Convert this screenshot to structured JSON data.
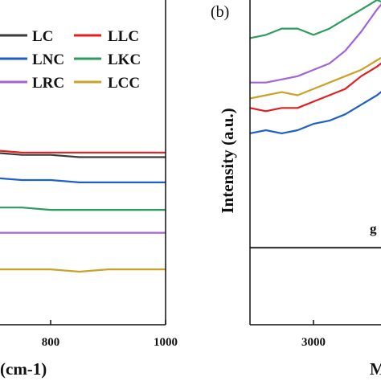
{
  "chart_data": [
    {
      "panel": "a",
      "type": "line",
      "xlabel": "(cm-1)",
      "ylabel": "",
      "xlim": [
        600,
        1000
      ],
      "x_ticks": [
        {
          "value": 800,
          "label": "800"
        },
        {
          "value": 1000,
          "label": "1000"
        }
      ],
      "grid": false,
      "legend_position": "top",
      "x": [
        600,
        650,
        700,
        750,
        800,
        850,
        900,
        950,
        1000
      ],
      "series": [
        {
          "name": "LC",
          "color": "#3a3a3a",
          "values": [
            0.78,
            0.74,
            0.72,
            0.71,
            0.71,
            0.7,
            0.7,
            0.7,
            0.7
          ]
        },
        {
          "name": "LLC",
          "color": "#e02020",
          "values": [
            0.74,
            0.73,
            0.73,
            0.72,
            0.72,
            0.72,
            0.72,
            0.72,
            0.72
          ]
        },
        {
          "name": "LNC",
          "color": "#1f5fc8",
          "values": [
            0.64,
            0.62,
            0.61,
            0.6,
            0.6,
            0.59,
            0.59,
            0.59,
            0.59
          ]
        },
        {
          "name": "LKC",
          "color": "#2a9d5c",
          "values": [
            0.52,
            0.49,
            0.48,
            0.48,
            0.47,
            0.47,
            0.47,
            0.47,
            0.47
          ]
        },
        {
          "name": "LRC",
          "color": "#a064d6",
          "values": [
            0.4,
            0.38,
            0.37,
            0.37,
            0.37,
            0.37,
            0.37,
            0.37,
            0.37
          ]
        },
        {
          "name": "LCC",
          "color": "#c9a227",
          "values": [
            0.24,
            0.22,
            0.21,
            0.21,
            0.21,
            0.2,
            0.21,
            0.21,
            0.21
          ]
        }
      ],
      "legend_labels": [
        "LC",
        "LLC",
        "LNC",
        "LKC",
        "LRC",
        "LCC"
      ]
    },
    {
      "panel": "b",
      "panel_label": "(b)",
      "type": "line",
      "xlabel": "M",
      "ylabel": "Intensity (a.u.)",
      "xlim": [
        2800,
        3400
      ],
      "x_ticks": [
        {
          "value": 3000,
          "label": "3000"
        }
      ],
      "grid": false,
      "annotation": "g",
      "x": [
        2800,
        2850,
        2900,
        2950,
        3000,
        3050,
        3100,
        3150,
        3200,
        3250,
        3300,
        3350,
        3400
      ],
      "series": [
        {
          "name": "LC",
          "color": "#3a3a3a",
          "values": [
            0.22,
            0.22,
            0.22,
            0.22,
            0.22,
            0.22,
            0.22,
            0.22,
            0.22,
            0.22,
            0.22,
            0.23,
            0.23
          ]
        },
        {
          "name": "LLC",
          "color": "#e02020",
          "values": [
            0.66,
            0.65,
            0.66,
            0.66,
            0.68,
            0.7,
            0.72,
            0.76,
            0.79,
            0.83,
            0.83,
            0.72,
            0.8
          ]
        },
        {
          "name": "LNC",
          "color": "#1f5fc8",
          "values": [
            0.58,
            0.59,
            0.58,
            0.59,
            0.61,
            0.62,
            0.64,
            0.67,
            0.7,
            0.74,
            0.76,
            0.77,
            0.78
          ]
        },
        {
          "name": "LKC",
          "color": "#2a9d5c",
          "values": [
            0.88,
            0.89,
            0.91,
            0.91,
            0.89,
            0.91,
            0.94,
            0.97,
            1.0,
            0.98,
            0.92,
            0.72,
            0.86
          ]
        },
        {
          "name": "LRC",
          "color": "#a064d6",
          "values": [
            0.74,
            0.74,
            0.75,
            0.76,
            0.78,
            0.8,
            0.84,
            0.9,
            0.97,
            1.03,
            1.05,
            1.06,
            1.06
          ]
        },
        {
          "name": "LCC",
          "color": "#c9a227",
          "values": [
            0.69,
            0.7,
            0.71,
            0.7,
            0.72,
            0.74,
            0.76,
            0.78,
            0.81,
            0.84,
            0.82,
            0.72,
            0.78
          ]
        }
      ]
    }
  ]
}
